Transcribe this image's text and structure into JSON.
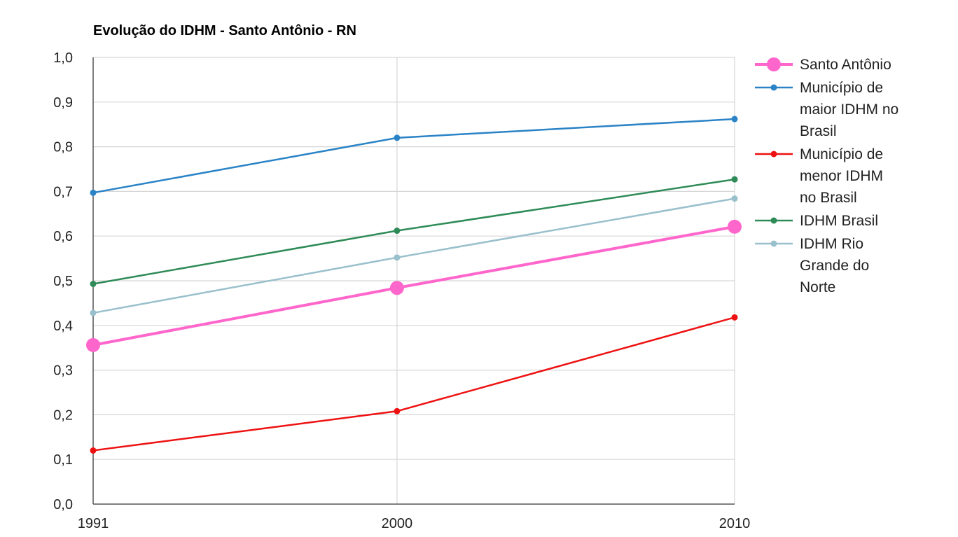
{
  "chart_data": {
    "type": "line",
    "title": "Evolução do IDHM - Santo Antônio - RN",
    "xlabel": "",
    "ylabel": "",
    "x": [
      "1991",
      "2000",
      "2010"
    ],
    "ylim": [
      0,
      1
    ],
    "y_ticks": [
      "0,0",
      "0,1",
      "0,2",
      "0,3",
      "0,4",
      "0,5",
      "0,6",
      "0,7",
      "0,8",
      "0,9",
      "1,0"
    ],
    "grid": true,
    "legend_position": "right",
    "series": [
      {
        "name": "Santo Antônio",
        "legend_lines": [
          "Santo Antônio"
        ],
        "values": [
          0.356,
          0.484,
          0.621
        ],
        "color": "#ff66cc",
        "emphasis": true
      },
      {
        "name": "Município de maior IDHM no Brasil",
        "legend_lines": [
          "Município de",
          "maior IDHM no",
          "Brasil"
        ],
        "values": [
          0.697,
          0.82,
          0.862
        ],
        "color": "#2a83c6",
        "emphasis": false
      },
      {
        "name": "Município de menor IDHM no Brasil",
        "legend_lines": [
          "Município de",
          "menor IDHM",
          "no Brasil"
        ],
        "values": [
          0.12,
          0.208,
          0.418
        ],
        "color": "#ee1111",
        "emphasis": false
      },
      {
        "name": "IDHM Brasil",
        "legend_lines": [
          "IDHM Brasil"
        ],
        "values": [
          0.493,
          0.612,
          0.727
        ],
        "color": "#2e8b57",
        "emphasis": false
      },
      {
        "name": "IDHM Rio Grande do Norte",
        "legend_lines": [
          "IDHM Rio",
          "Grande do",
          "Norte"
        ],
        "values": [
          0.428,
          0.552,
          0.684
        ],
        "color": "#99c0cc",
        "emphasis": false
      }
    ]
  }
}
